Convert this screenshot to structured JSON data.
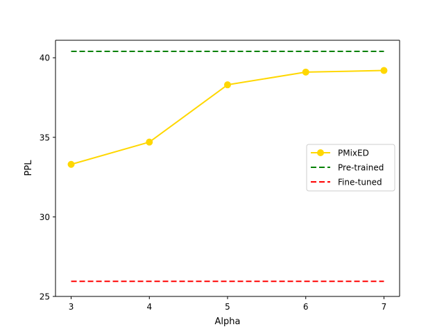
{
  "chart_data": {
    "type": "line",
    "title": "",
    "xlabel": "Alpha",
    "ylabel": "PPL",
    "xlim": [
      2.8,
      7.2
    ],
    "ylim": [
      25,
      41.1
    ],
    "x_ticks": [
      3,
      4,
      5,
      6,
      7
    ],
    "y_ticks": [
      25,
      30,
      35,
      40
    ],
    "grid": false,
    "legend_position": "center-right",
    "series": [
      {
        "name": "PMixED",
        "style": "solid",
        "marker": "circle",
        "color": "#FFD700",
        "x": [
          3,
          4,
          5,
          6,
          7
        ],
        "y": [
          33.3,
          34.7,
          38.3,
          39.1,
          39.2
        ]
      },
      {
        "name": "Pre-trained",
        "style": "dashed",
        "marker": "none",
        "color": "#008000",
        "x": [
          3,
          7
        ],
        "y": [
          40.4,
          40.4
        ]
      },
      {
        "name": "Fine-tuned",
        "style": "dashed",
        "marker": "none",
        "color": "#FF0000",
        "x": [
          3,
          7
        ],
        "y": [
          25.95,
          25.95
        ]
      }
    ]
  }
}
